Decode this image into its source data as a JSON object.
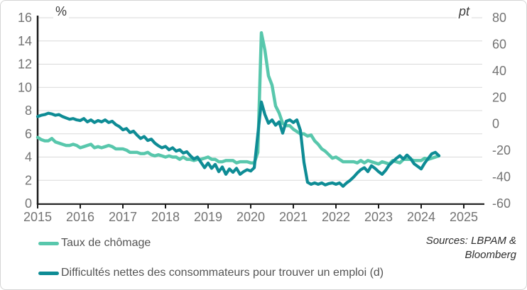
{
  "panel": {
    "background": "#ffffff",
    "border_color": "#d5d5d5"
  },
  "colors": {
    "gridline": "#d9d9d9",
    "axis": "#1a1a1a",
    "tick_label": "#737373",
    "unit_label": "#3d3d3d",
    "legend_text": "#545454",
    "source_text": "#2e2e2e"
  },
  "chart_data": {
    "type": "line",
    "title": "",
    "grid": "horizontal",
    "legend_position": "bottom-left",
    "left_axis": {
      "label": "%",
      "min": 0,
      "max": 16,
      "step": 2,
      "ticks": [
        0,
        2,
        4,
        6,
        8,
        10,
        12,
        14,
        16
      ]
    },
    "right_axis": {
      "label": "pt",
      "min": -60,
      "max": 80,
      "step": 20,
      "ticks": [
        -60,
        -40,
        -20,
        0,
        20,
        40,
        60,
        80
      ]
    },
    "x_axis": {
      "start_year": 2015,
      "end_year": 2025,
      "ticks": [
        2015,
        2016,
        2017,
        2018,
        2019,
        2020,
        2021,
        2022,
        2023,
        2024,
        2025
      ],
      "frequency": "monthly"
    },
    "series": [
      {
        "name": "Taux de chômage",
        "axis": "left",
        "color": "#58c7ac",
        "start": "2015-01",
        "values": [
          5.7,
          5.5,
          5.4,
          5.4,
          5.6,
          5.3,
          5.2,
          5.1,
          5.0,
          5.0,
          5.1,
          5.0,
          4.8,
          4.9,
          5.0,
          5.1,
          4.8,
          4.9,
          4.8,
          4.9,
          5.0,
          4.9,
          4.7,
          4.7,
          4.7,
          4.6,
          4.4,
          4.4,
          4.4,
          4.3,
          4.3,
          4.4,
          4.2,
          4.1,
          4.2,
          4.1,
          4.0,
          4.1,
          4.0,
          4.0,
          3.8,
          4.0,
          3.8,
          3.8,
          3.7,
          3.8,
          3.8,
          3.9,
          4.0,
          3.8,
          3.8,
          3.6,
          3.6,
          3.7,
          3.7,
          3.7,
          3.5,
          3.6,
          3.6,
          3.6,
          3.5,
          3.5,
          4.4,
          14.7,
          13.2,
          11.0,
          10.2,
          8.4,
          7.8,
          6.9,
          6.7,
          6.7,
          6.4,
          6.2,
          6.0,
          6.0,
          5.8,
          5.9,
          5.4,
          5.1,
          4.7,
          4.5,
          4.2,
          3.9,
          4.0,
          3.8,
          3.6,
          3.6,
          3.6,
          3.6,
          3.5,
          3.7,
          3.5,
          3.7,
          3.6,
          3.5,
          3.4,
          3.6,
          3.5,
          3.4,
          3.7,
          3.6,
          3.5,
          3.8,
          3.8,
          3.8,
          3.7,
          3.7,
          3.7,
          3.9,
          3.8,
          3.9,
          4.0,
          4.1
        ]
      },
      {
        "name": "Difficultés nettes des consommateurs pour trouver un emploi (d)",
        "axis": "right",
        "color": "#0e8c95",
        "start": "2015-01",
        "values": [
          5.5,
          6.5,
          7.0,
          8.0,
          7.5,
          6.5,
          7.0,
          5.5,
          4.5,
          3.5,
          4.0,
          3.0,
          2.5,
          4.0,
          1.5,
          3.0,
          1.0,
          2.5,
          1.5,
          3.0,
          1.0,
          2.0,
          -0.5,
          -2.0,
          -4.5,
          -3.5,
          -6.5,
          -5.5,
          -8.5,
          -11.0,
          -9.5,
          -12.5,
          -11.5,
          -14.5,
          -16.5,
          -18.0,
          -17.0,
          -19.5,
          -18.0,
          -20.5,
          -19.5,
          -22.0,
          -21.0,
          -24.0,
          -26.5,
          -25.0,
          -29.0,
          -33.0,
          -29.5,
          -33.5,
          -30.5,
          -36.0,
          -32.5,
          -38.0,
          -34.0,
          -36.5,
          -33.5,
          -38.0,
          -36.0,
          -34.5,
          -35.5,
          -33.0,
          -8.0,
          16.5,
          7.0,
          0.5,
          3.0,
          -1.0,
          1.5,
          -7.0,
          2.0,
          3.0,
          1.0,
          3.0,
          -5.0,
          -29.0,
          -44.0,
          -45.5,
          -44.5,
          -45.5,
          -44.5,
          -46.0,
          -45.0,
          -44.5,
          -45.5,
          -44.5,
          -47.0,
          -44.5,
          -42.5,
          -40.0,
          -37.0,
          -34.5,
          -33.0,
          -36.0,
          -31.5,
          -33.5,
          -36.0,
          -38.0,
          -35.0,
          -31.0,
          -28.5,
          -26.0,
          -24.0,
          -26.5,
          -23.5,
          -26.0,
          -30.0,
          -32.0,
          -34.0,
          -29.5,
          -26.0,
          -22.5,
          -21.5,
          -24.0
        ]
      }
    ],
    "source_note": {
      "line1": "Sources: LBPAM &",
      "line2": "Bloomberg"
    }
  }
}
